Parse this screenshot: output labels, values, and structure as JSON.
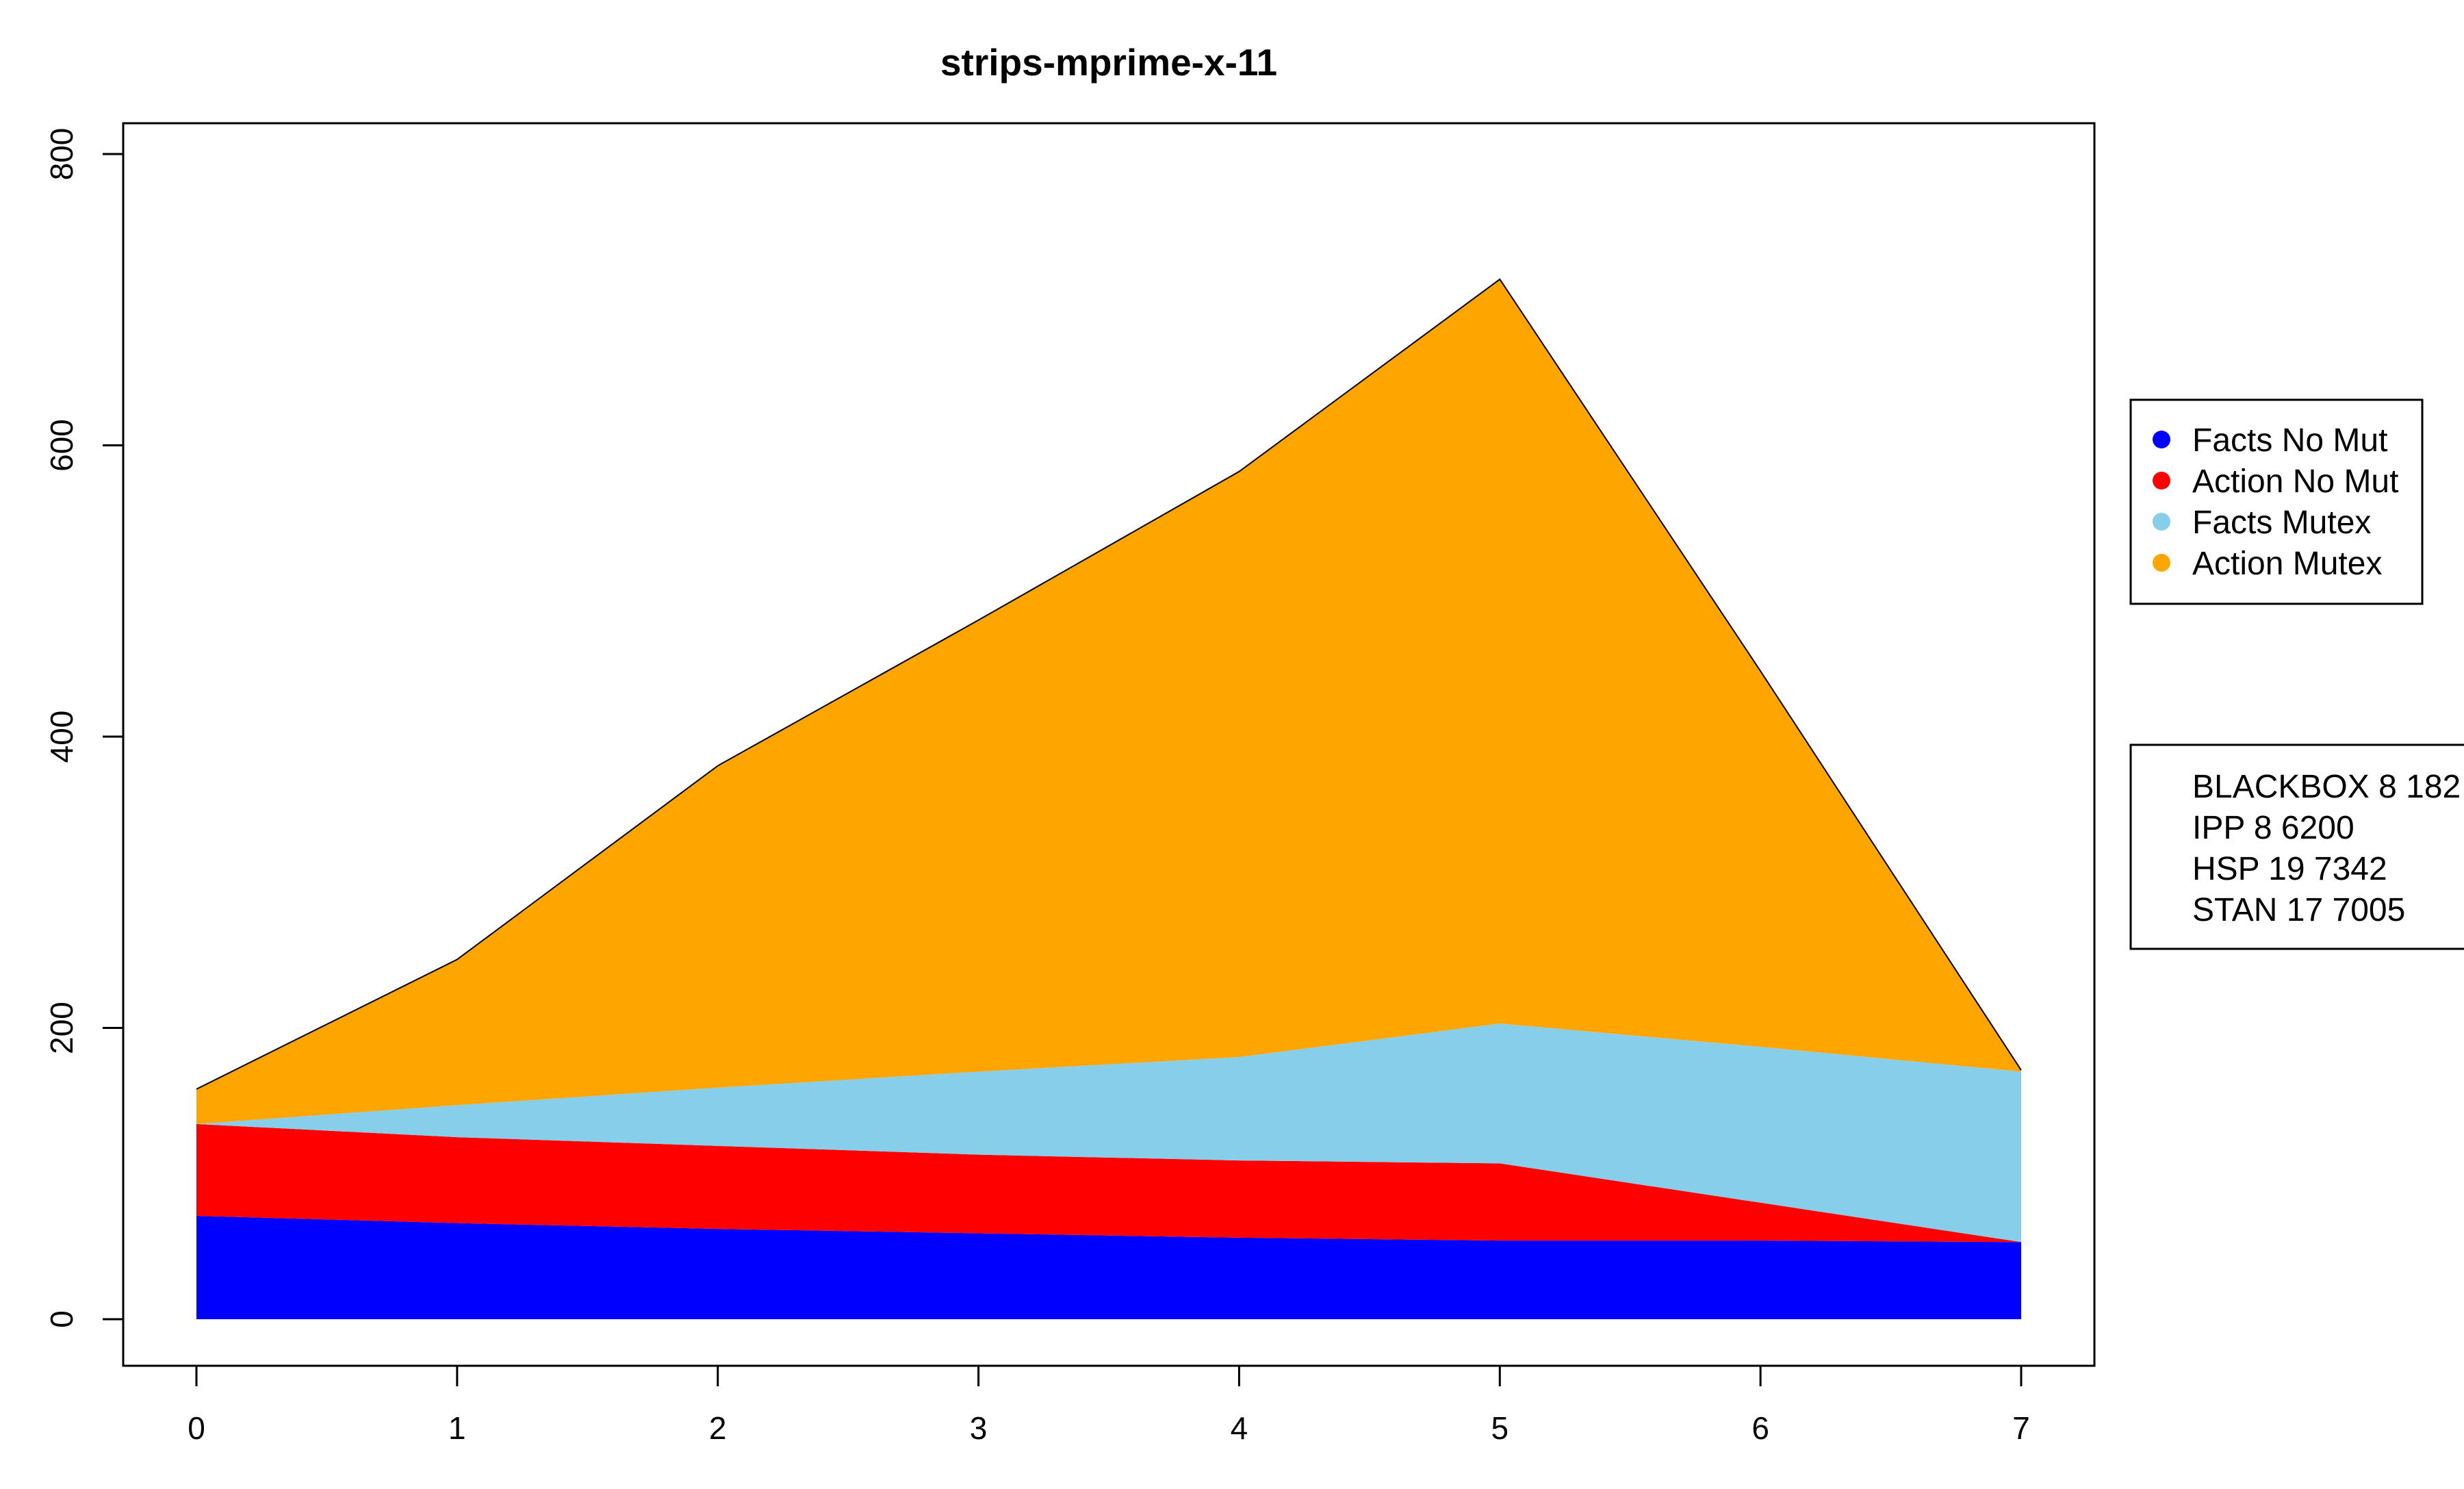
{
  "chart_data": {
    "type": "area",
    "stacked": true,
    "title": "strips-mprime-x-11",
    "xlabel": "",
    "ylabel": "",
    "x": [
      0,
      1,
      2,
      3,
      4,
      5,
      6,
      7
    ],
    "xlim": [
      0,
      7
    ],
    "ylim": [
      0,
      800
    ],
    "x_ticks": [
      "0",
      "1",
      "2",
      "3",
      "4",
      "5",
      "6",
      "7"
    ],
    "y_ticks": [
      "0",
      "200",
      "400",
      "600",
      "800"
    ],
    "series": [
      {
        "name": "Facts No Mut",
        "color": "#0000ff",
        "values": [
          71,
          66,
          62,
          59,
          56,
          54,
          54,
          53
        ]
      },
      {
        "name": "Action No Mut",
        "color": "#ff0000",
        "values": [
          63,
          59,
          57,
          54,
          53,
          53,
          26,
          0
        ]
      },
      {
        "name": "Facts Mutex",
        "color": "#87ceeb",
        "values": [
          0,
          22,
          40,
          57,
          71,
          96,
          107,
          117
        ]
      },
      {
        "name": "Action Mutex",
        "color": "#ffa500",
        "values": [
          24,
          100,
          221,
          310,
          402,
          511,
          258,
          1
        ]
      }
    ],
    "legend": {
      "position": "right"
    },
    "info_box": [
      "BLACKBOX  8 182",
      "IPP  8 6200",
      "HSP 19 7342",
      "STAN 17 7005"
    ],
    "grid": false
  }
}
